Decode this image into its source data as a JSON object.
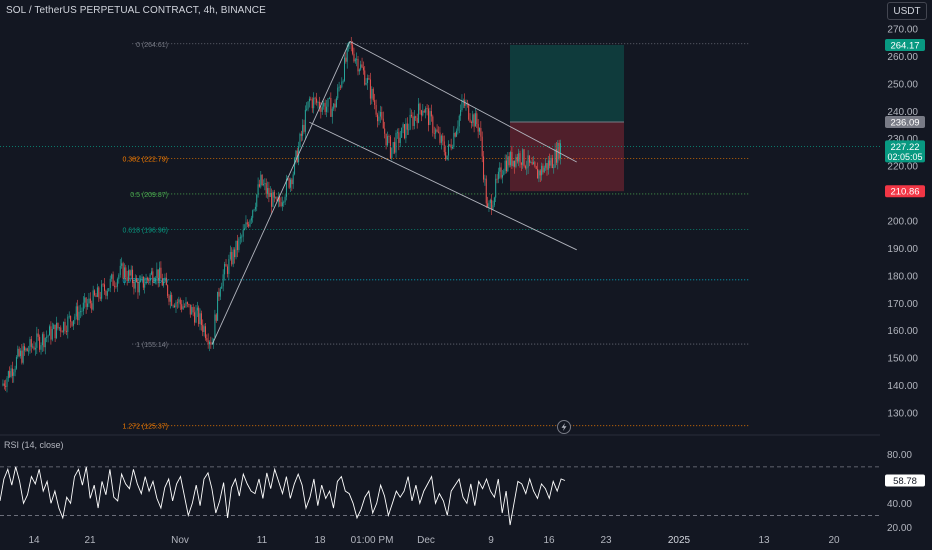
{
  "header": {
    "title": "SOL / TetherUS PERPETUAL CONTRACT, 4h, BINANCE",
    "unit_button": "USDT"
  },
  "colors": {
    "background": "#131722",
    "up": "#26a69a",
    "down": "#ef5350",
    "rsi_line": "#ffffff"
  },
  "chart_data": [
    {
      "type": "candlestick",
      "title": "SOL / TetherUS PERPETUAL CONTRACT, 4h, BINANCE",
      "y_ticks": [
        "270.00",
        "260.00",
        "250.00",
        "240.00",
        "230.00",
        "220.00",
        "210.00",
        "200.00",
        "190.00",
        "180.00",
        "170.00",
        "160.00",
        "150.00",
        "140.00",
        "130.00"
      ],
      "x_ticks": [
        "14",
        "21",
        "Nov",
        "11",
        "18",
        "01:00 PM",
        "Dec",
        "9",
        "16",
        "23",
        "2025",
        "13",
        "20"
      ],
      "ylim": [
        125,
        272
      ],
      "price_path": [
        {
          "x": "Oct 10",
          "y": 140
        },
        {
          "x": "Oct 12",
          "y": 150
        },
        {
          "x": "Oct 14",
          "y": 155
        },
        {
          "x": "Oct 18",
          "y": 163
        },
        {
          "x": "Oct 22",
          "y": 173
        },
        {
          "x": "Oct 25",
          "y": 182
        },
        {
          "x": "Oct 27",
          "y": 176
        },
        {
          "x": "Oct 29",
          "y": 182
        },
        {
          "x": "Oct 31",
          "y": 172
        },
        {
          "x": "Nov 3",
          "y": 166
        },
        {
          "x": "Nov 5",
          "y": 156
        },
        {
          "x": "Nov 6",
          "y": 178
        },
        {
          "x": "Nov 9",
          "y": 196
        },
        {
          "x": "Nov 11",
          "y": 214
        },
        {
          "x": "Nov 13",
          "y": 205
        },
        {
          "x": "Nov 15",
          "y": 218
        },
        {
          "x": "Nov 17",
          "y": 244
        },
        {
          "x": "Nov 20",
          "y": 241
        },
        {
          "x": "Nov 22",
          "y": 264
        },
        {
          "x": "Nov 24",
          "y": 252
        },
        {
          "x": "Nov 27",
          "y": 226
        },
        {
          "x": "Dec 1",
          "y": 242
        },
        {
          "x": "Dec 4",
          "y": 224
        },
        {
          "x": "Dec 6",
          "y": 243
        },
        {
          "x": "Dec 8",
          "y": 234
        },
        {
          "x": "Dec 9",
          "y": 203
        },
        {
          "x": "Dec 11",
          "y": 221
        },
        {
          "x": "Dec 13",
          "y": 224
        },
        {
          "x": "Dec 15",
          "y": 217
        },
        {
          "x": "Dec 17",
          "y": 222
        },
        {
          "x": "Dec 18",
          "y": 227.22
        }
      ],
      "fibonacci": [
        {
          "label": "0 (264.61)",
          "value": 264.61,
          "color": "#787b86"
        },
        {
          "label": "0.382 (222.79)",
          "value": 222.79,
          "color": "#f57c00"
        },
        {
          "label": "0.5 (209.87)",
          "value": 209.87,
          "color": "#4caf50"
        },
        {
          "label": "0.618 (196.96)",
          "value": 196.96,
          "color": "#089981"
        },
        {
          "label": "0.786 (178.56)",
          "value": 178.56,
          "color": "#00bcd4"
        },
        {
          "label": "1 (155.14)",
          "value": 155.14,
          "color": "#787b86"
        },
        {
          "label": "1.272 (125.37)",
          "value": 125.37,
          "color": "#f57c00"
        }
      ],
      "position": {
        "target": 264.17,
        "entry": 236.09,
        "stop": 210.86
      },
      "price_badges": [
        {
          "text": "264.17",
          "value": 264.17,
          "color": "#089981"
        },
        {
          "text": "236.09",
          "value": 236.09,
          "color": "#787b86"
        },
        {
          "text": "227.22",
          "sub": "02:05:05",
          "value": 227.22,
          "color": "#089981"
        },
        {
          "text": "210.86",
          "value": 210.86,
          "color": "#f23645"
        }
      ]
    },
    {
      "type": "line",
      "title": "RSI (14, close)",
      "y_ticks": [
        "80.00",
        "60.00",
        "40.00",
        "20.00"
      ],
      "bands": [
        70,
        30
      ],
      "last_value": "58.78",
      "ylim": [
        18,
        88
      ],
      "series": [
        {
          "values": [
            42,
            60,
            68,
            55,
            70,
            58,
            40,
            47,
            62,
            56,
            68,
            50,
            58,
            40,
            50,
            36,
            28,
            45,
            40,
            62,
            68,
            55,
            70,
            44,
            55,
            36,
            58,
            47,
            68,
            45,
            42,
            64,
            56,
            52,
            68,
            56,
            48,
            62,
            50,
            58,
            44,
            36,
            53,
            60,
            42,
            56,
            62,
            46,
            30,
            40,
            55,
            38,
            60,
            65,
            52,
            32,
            42,
            57,
            28,
            53,
            60,
            46,
            64,
            56,
            50,
            48,
            60,
            44,
            65,
            52,
            68,
            58,
            48,
            62,
            44,
            56,
            64,
            55,
            36,
            45,
            60,
            38,
            55,
            44,
            50,
            36,
            58,
            62,
            50,
            48,
            40,
            28,
            35,
            45,
            50,
            32,
            40,
            55,
            46,
            30,
            40,
            50,
            45,
            50,
            62,
            42,
            55,
            40,
            50,
            56,
            62,
            40,
            48,
            42,
            30,
            50,
            55,
            60,
            45,
            40,
            56,
            38,
            58,
            52,
            60,
            50,
            45,
            60,
            32,
            50,
            22,
            40,
            58,
            56,
            48,
            60,
            50,
            44,
            56,
            52,
            44,
            58,
            50,
            60,
            58.78
          ]
        }
      ]
    }
  ]
}
